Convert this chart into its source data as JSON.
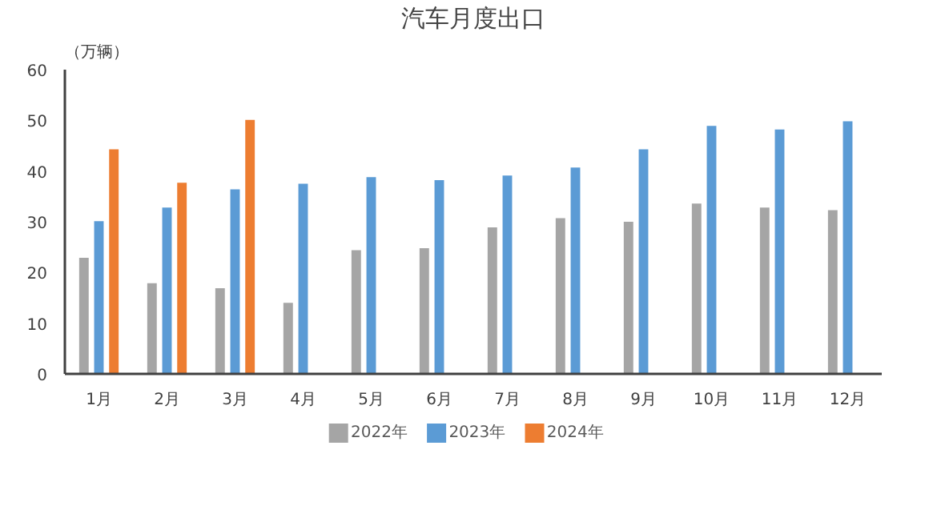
{
  "chart_data": {
    "type": "bar",
    "title": "汽车月度出口",
    "ylabel": "（万辆）",
    "categories": [
      "1月",
      "2月",
      "3月",
      "4月",
      "5月",
      "6月",
      "7月",
      "8月",
      "9月",
      "10月",
      "11月",
      "12月"
    ],
    "series": [
      {
        "name": "2022年",
        "color": "#a5a5a5",
        "values": [
          22.9,
          17.9,
          16.9,
          14.0,
          24.4,
          24.8,
          28.9,
          30.7,
          30.0,
          33.6,
          32.8,
          32.3
        ]
      },
      {
        "name": "2023年",
        "color": "#5b9bd5",
        "values": [
          30.1,
          32.8,
          36.4,
          37.5,
          38.8,
          38.2,
          39.1,
          40.7,
          44.3,
          48.9,
          48.2,
          49.8
        ]
      },
      {
        "name": "2024年",
        "color": "#ed7d31",
        "values": [
          44.3,
          37.7,
          50.1,
          null,
          null,
          null,
          null,
          null,
          null,
          null,
          null,
          null
        ]
      }
    ],
    "ylim": [
      0,
      60
    ],
    "yticks": [
      0,
      10,
      20,
      30,
      40,
      50,
      60
    ],
    "grid": false,
    "legend": "bottom"
  }
}
